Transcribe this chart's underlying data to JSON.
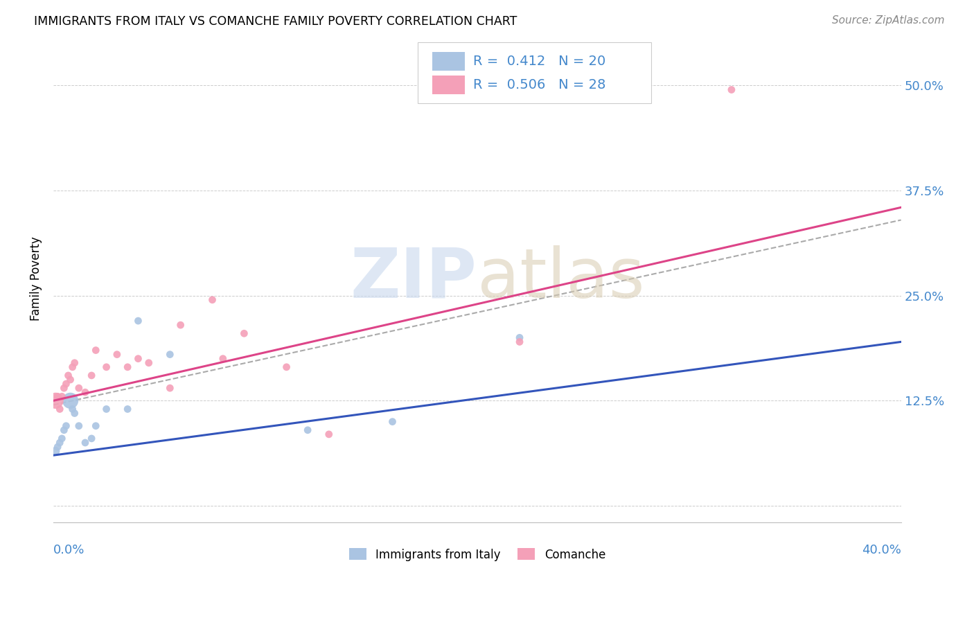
{
  "title": "IMMIGRANTS FROM ITALY VS COMANCHE FAMILY POVERTY CORRELATION CHART",
  "source": "Source: ZipAtlas.com",
  "ylabel": "Family Poverty",
  "ytick_labels": [
    "",
    "12.5%",
    "25.0%",
    "37.5%",
    "50.0%"
  ],
  "ytick_values": [
    0,
    0.125,
    0.25,
    0.375,
    0.5
  ],
  "xlim": [
    0.0,
    0.4
  ],
  "ylim": [
    -0.02,
    0.56
  ],
  "blue_color": "#aac4e2",
  "pink_color": "#f4a0b8",
  "blue_line_color": "#3355bb",
  "pink_line_color": "#dd4488",
  "dash_color": "#aaaaaa",
  "legend_label_blue": "Immigrants from Italy",
  "legend_label_pink": "Comanche",
  "blue_R": "0.412",
  "blue_N": "20",
  "pink_R": "0.506",
  "pink_N": "28",
  "blue_points_x": [
    0.001,
    0.002,
    0.003,
    0.004,
    0.005,
    0.006,
    0.008,
    0.009,
    0.01,
    0.012,
    0.015,
    0.018,
    0.02,
    0.025,
    0.035,
    0.04,
    0.055,
    0.12,
    0.16,
    0.22
  ],
  "blue_points_y": [
    0.065,
    0.07,
    0.075,
    0.08,
    0.09,
    0.095,
    0.125,
    0.115,
    0.11,
    0.095,
    0.075,
    0.08,
    0.095,
    0.115,
    0.115,
    0.22,
    0.18,
    0.09,
    0.1,
    0.2
  ],
  "blue_sizes": [
    80,
    60,
    60,
    60,
    60,
    60,
    280,
    60,
    60,
    60,
    60,
    60,
    60,
    60,
    60,
    60,
    60,
    60,
    60,
    60
  ],
  "pink_points_x": [
    0.001,
    0.002,
    0.003,
    0.004,
    0.005,
    0.006,
    0.007,
    0.008,
    0.009,
    0.01,
    0.012,
    0.015,
    0.018,
    0.02,
    0.025,
    0.03,
    0.035,
    0.04,
    0.045,
    0.055,
    0.06,
    0.075,
    0.08,
    0.09,
    0.11,
    0.13,
    0.22,
    0.32
  ],
  "pink_points_y": [
    0.125,
    0.13,
    0.115,
    0.13,
    0.14,
    0.145,
    0.155,
    0.15,
    0.165,
    0.17,
    0.14,
    0.135,
    0.155,
    0.185,
    0.165,
    0.18,
    0.165,
    0.175,
    0.17,
    0.14,
    0.215,
    0.245,
    0.175,
    0.205,
    0.165,
    0.085,
    0.195,
    0.495
  ],
  "pink_sizes": [
    280,
    60,
    60,
    60,
    60,
    60,
    60,
    60,
    60,
    60,
    60,
    60,
    60,
    60,
    60,
    60,
    60,
    60,
    60,
    60,
    60,
    60,
    60,
    60,
    60,
    60,
    60,
    60
  ],
  "blue_line_x0": 0.0,
  "blue_line_y0": 0.06,
  "blue_line_x1": 0.4,
  "blue_line_y1": 0.195,
  "pink_line_x0": 0.0,
  "pink_line_y0": 0.125,
  "pink_line_x1": 0.4,
  "pink_line_y1": 0.355,
  "dash_line_x0": 0.0,
  "dash_line_y0": 0.12,
  "dash_line_x1": 0.4,
  "dash_line_y1": 0.34
}
